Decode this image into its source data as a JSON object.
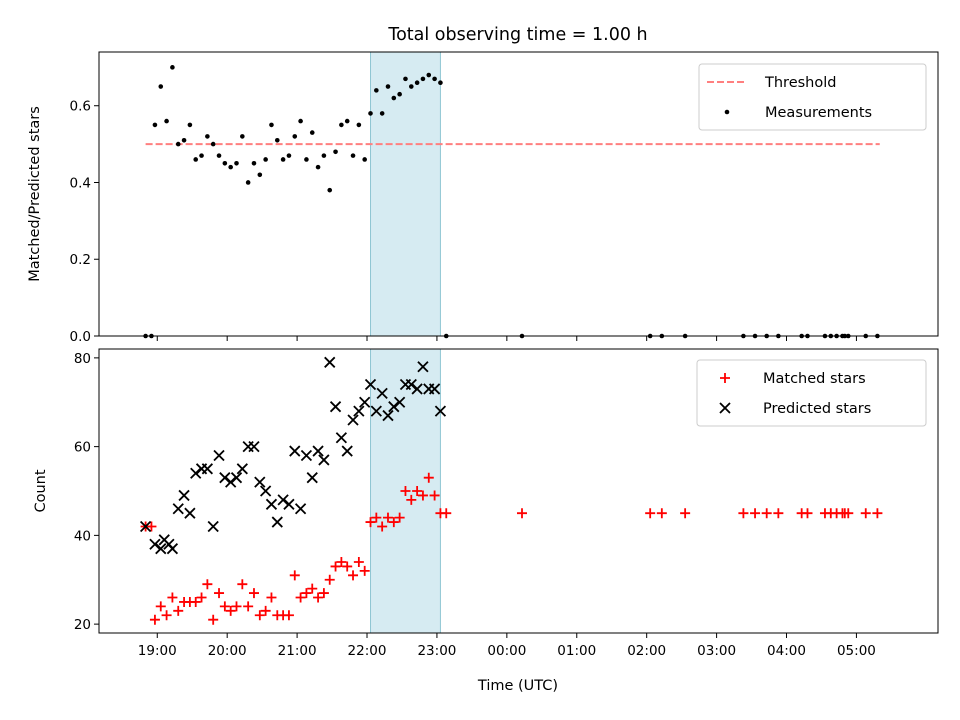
{
  "chart_data": [
    {
      "type": "scatter",
      "title": "Total observing time = 1.00 h",
      "xlabel": "",
      "ylabel": "Matched/Predicted stars",
      "ylim": [
        0.0,
        0.74
      ],
      "yticks": [
        "0.0",
        "0.2",
        "0.4",
        "0.6"
      ],
      "ytick_values": [
        0.0,
        0.2,
        0.4,
        0.6
      ],
      "highlight_span": [
        "22:03",
        "23:03"
      ],
      "legend": {
        "position": "upper right",
        "entries": [
          "Threshold",
          "Measurements"
        ]
      },
      "series": [
        {
          "name": "Threshold",
          "kind": "dashed-line",
          "color": "#ff7f7f",
          "x": [
            "18:50",
            "05:20"
          ],
          "y": [
            0.5,
            0.5
          ]
        },
        {
          "name": "Measurements",
          "kind": "dots",
          "color": "#000000",
          "x": [
            "18:50",
            "18:55",
            "18:58",
            "19:03",
            "19:08",
            "19:13",
            "19:18",
            "19:23",
            "19:28",
            "19:33",
            "19:38",
            "19:43",
            "19:48",
            "19:53",
            "19:58",
            "20:03",
            "20:08",
            "20:13",
            "20:18",
            "20:23",
            "20:28",
            "20:33",
            "20:38",
            "20:43",
            "20:48",
            "20:53",
            "20:58",
            "21:03",
            "21:08",
            "21:13",
            "21:18",
            "21:23",
            "21:28",
            "21:33",
            "21:38",
            "21:43",
            "21:48",
            "21:53",
            "21:58",
            "22:03",
            "22:08",
            "22:13",
            "22:18",
            "22:23",
            "22:28",
            "22:33",
            "22:38",
            "22:43",
            "22:48",
            "22:53",
            "22:58",
            "23:03",
            "23:08",
            "00:13",
            "02:03",
            "02:13",
            "02:33",
            "03:23",
            "03:33",
            "03:43",
            "03:53",
            "04:13",
            "04:18",
            "04:33",
            "04:38",
            "04:43",
            "04:48",
            "04:50",
            "04:53",
            "05:08",
            "05:18"
          ],
          "y": [
            0.0,
            0.0,
            0.55,
            0.65,
            0.56,
            0.7,
            0.5,
            0.51,
            0.55,
            0.46,
            0.47,
            0.52,
            0.5,
            0.47,
            0.45,
            0.44,
            0.45,
            0.52,
            0.4,
            0.45,
            0.42,
            0.46,
            0.55,
            0.51,
            0.46,
            0.47,
            0.52,
            0.56,
            0.46,
            0.53,
            0.44,
            0.47,
            0.38,
            0.48,
            0.55,
            0.56,
            0.47,
            0.55,
            0.46,
            0.58,
            0.64,
            0.58,
            0.65,
            0.62,
            0.63,
            0.67,
            0.65,
            0.66,
            0.67,
            0.68,
            0.67,
            0.66,
            0.0,
            0.0,
            0.0,
            0.0,
            0.0,
            0.0,
            0.0,
            0.0,
            0.0,
            0.0,
            0.0,
            0.0,
            0.0,
            0.0,
            0.0,
            0.0,
            0.0,
            0.0,
            0.0
          ]
        }
      ]
    },
    {
      "type": "scatter",
      "title": "",
      "xlabel": "Time (UTC)",
      "ylabel": "Count",
      "ylim": [
        18,
        82
      ],
      "yticks": [
        "20",
        "40",
        "60",
        "80"
      ],
      "ytick_values": [
        20,
        40,
        60,
        80
      ],
      "xticks": [
        "19:00",
        "20:00",
        "21:00",
        "22:00",
        "23:00",
        "00:00",
        "01:00",
        "02:00",
        "03:00",
        "04:00",
        "05:00"
      ],
      "highlight_span": [
        "22:03",
        "23:03"
      ],
      "legend": {
        "position": "upper right",
        "entries": [
          "Matched stars",
          "Predicted stars"
        ]
      },
      "series": [
        {
          "name": "Matched stars",
          "kind": "plus",
          "color": "#ff0000",
          "x": [
            "18:50",
            "18:55",
            "18:58",
            "19:03",
            "19:08",
            "19:13",
            "19:18",
            "19:23",
            "19:28",
            "19:33",
            "19:38",
            "19:43",
            "19:48",
            "19:53",
            "19:58",
            "20:03",
            "20:08",
            "20:13",
            "20:18",
            "20:23",
            "20:28",
            "20:33",
            "20:38",
            "20:43",
            "20:48",
            "20:53",
            "20:58",
            "21:03",
            "21:08",
            "21:13",
            "21:18",
            "21:23",
            "21:28",
            "21:33",
            "21:38",
            "21:43",
            "21:48",
            "21:53",
            "21:58",
            "22:03",
            "22:08",
            "22:13",
            "22:18",
            "22:23",
            "22:28",
            "22:33",
            "22:38",
            "22:43",
            "22:48",
            "22:53",
            "22:58",
            "23:03",
            "23:08",
            "00:13",
            "02:03",
            "02:13",
            "02:33",
            "03:23",
            "03:33",
            "03:43",
            "03:53",
            "04:13",
            "04:18",
            "04:33",
            "04:38",
            "04:43",
            "04:48",
            "04:50",
            "04:53",
            "05:08",
            "05:18"
          ],
          "y": [
            42,
            42,
            21,
            24,
            22,
            26,
            23,
            25,
            25,
            25,
            26,
            29,
            21,
            27,
            24,
            23,
            24,
            29,
            24,
            27,
            22,
            23,
            26,
            22,
            22,
            22,
            31,
            26,
            27,
            28,
            26,
            27,
            30,
            33,
            34,
            33,
            31,
            34,
            32,
            43,
            44,
            42,
            44,
            43,
            44,
            50,
            48,
            50,
            49,
            53,
            49,
            45,
            45,
            45,
            45,
            45,
            45,
            45,
            45,
            45,
            45,
            45,
            45,
            45,
            45,
            45,
            45,
            45,
            45,
            45,
            45
          ]
        },
        {
          "name": "Predicted stars",
          "kind": "cross",
          "color": "#000000",
          "x": [
            "18:50",
            "18:58",
            "19:03",
            "19:06",
            "19:10",
            "19:13",
            "19:18",
            "19:23",
            "19:28",
            "19:33",
            "19:38",
            "19:43",
            "19:48",
            "19:53",
            "19:58",
            "20:03",
            "20:08",
            "20:13",
            "20:18",
            "20:23",
            "20:28",
            "20:33",
            "20:38",
            "20:43",
            "20:48",
            "20:53",
            "20:58",
            "21:03",
            "21:08",
            "21:13",
            "21:18",
            "21:23",
            "21:28",
            "21:33",
            "21:38",
            "21:43",
            "21:48",
            "21:53",
            "21:58",
            "22:03",
            "22:08",
            "22:13",
            "22:18",
            "22:23",
            "22:28",
            "22:33",
            "22:38",
            "22:43",
            "22:48",
            "22:53",
            "22:58",
            "23:03"
          ],
          "y": [
            42,
            38,
            37,
            39,
            38,
            37,
            46,
            49,
            45,
            54,
            55,
            55,
            42,
            58,
            53,
            52,
            53,
            55,
            60,
            60,
            52,
            50,
            47,
            43,
            48,
            47,
            59,
            46,
            58,
            53,
            59,
            57,
            79,
            69,
            62,
            59,
            66,
            68,
            70,
            74,
            68,
            72,
            67,
            69,
            70,
            74,
            74,
            73,
            78,
            73,
            73,
            68
          ]
        }
      ]
    }
  ]
}
